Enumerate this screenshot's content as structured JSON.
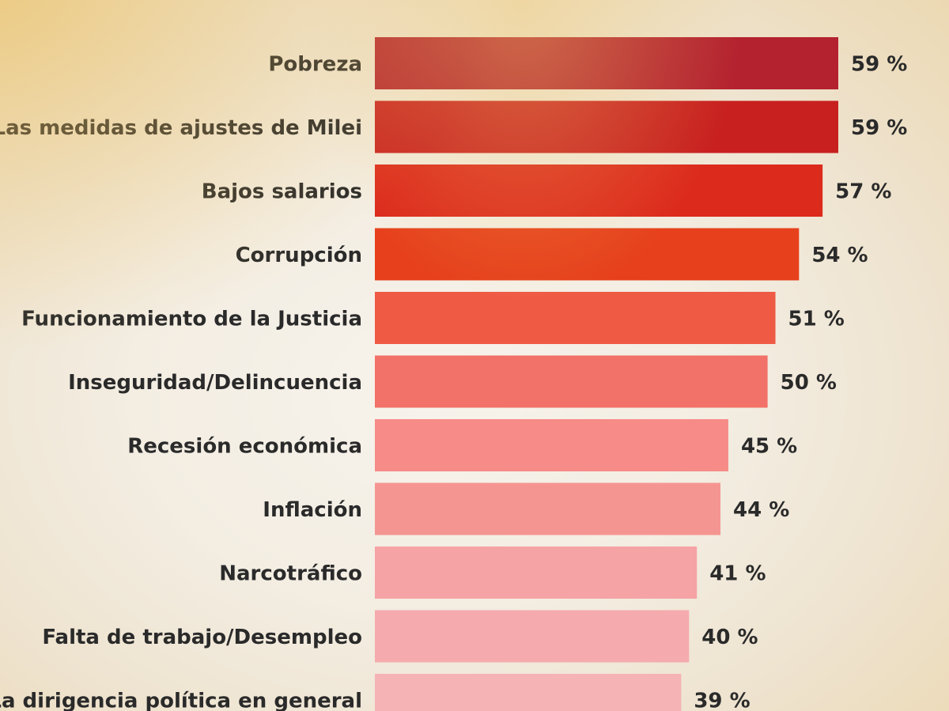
{
  "chart_data": {
    "type": "bar",
    "orientation": "horizontal",
    "title": "",
    "xlabel": "",
    "ylabel": "",
    "xlim": [
      0,
      59
    ],
    "grid": false,
    "legend": "none",
    "categories": [
      "Pobreza",
      "Las medidas de ajustes de Milei",
      "Bajos salarios",
      "Corrupción",
      "Funcionamiento de la Justicia",
      "Inseguridad/Delincuencia",
      "Recesión económica",
      "Inflación",
      "Narcotráfico",
      "Falta de trabajo/Desempleo",
      "La dirigencia política en general"
    ],
    "values": [
      59,
      59,
      57,
      54,
      51,
      50,
      45,
      44,
      41,
      40,
      39
    ],
    "value_labels": [
      "59 %",
      "59 %",
      "57 %",
      "54 %",
      "51 %",
      "50 %",
      "45 %",
      "44 %",
      "41 %",
      "40 %",
      "39 %"
    ],
    "colors": [
      "#b4222f",
      "#c8201f",
      "#dc2a1c",
      "#e6411c",
      "#ef5a45",
      "#f27168",
      "#f68b87",
      "#f59592",
      "#f5a3a5",
      "#f5abae",
      "#f5b3b6"
    ]
  }
}
